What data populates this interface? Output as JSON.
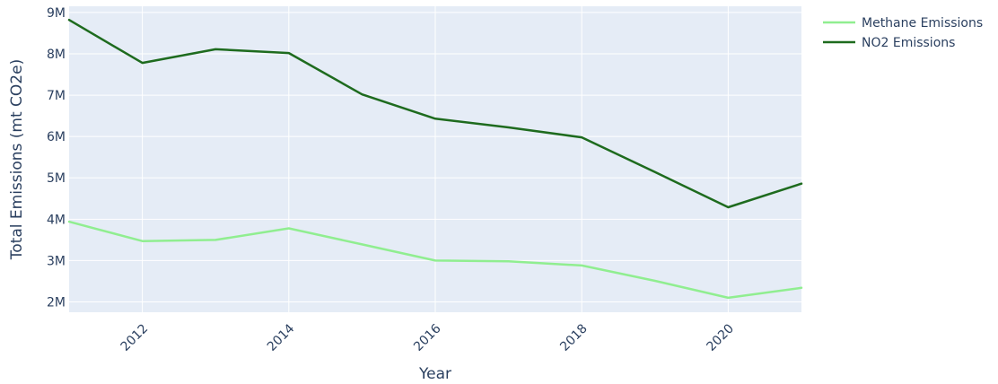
{
  "chart_data": {
    "type": "line",
    "title": "",
    "xlabel": "Year",
    "ylabel": "Total Emissions (mt CO2e)",
    "x": [
      2011,
      2012,
      2013,
      2014,
      2015,
      2016,
      2017,
      2018,
      2019,
      2020,
      2021
    ],
    "xlim": [
      2011,
      2021
    ],
    "ylim": [
      1750000,
      9150000
    ],
    "x_ticks": [
      2012,
      2014,
      2016,
      2018,
      2020
    ],
    "x_tick_labels": [
      "2012",
      "2014",
      "2016",
      "2018",
      "2020"
    ],
    "y_ticks": [
      2000000,
      3000000,
      4000000,
      5000000,
      6000000,
      7000000,
      8000000,
      9000000
    ],
    "y_tick_labels": [
      "2M",
      "3M",
      "4M",
      "5M",
      "6M",
      "7M",
      "8M",
      "9M"
    ],
    "grid": true,
    "legend_position": "top-right",
    "plot_background": "#e5ecf6",
    "series": [
      {
        "name": "Methane Emissions",
        "color": "#90ee90",
        "values": [
          3940000,
          3470000,
          3500000,
          3780000,
          3390000,
          3000000,
          2980000,
          2880000,
          2510000,
          2100000,
          2340000
        ]
      },
      {
        "name": "NO2 Emissions",
        "color": "#1e6b1e",
        "values": [
          8820000,
          7780000,
          8110000,
          8020000,
          7020000,
          6430000,
          6220000,
          5980000,
          5140000,
          4290000,
          4860000
        ]
      }
    ]
  }
}
